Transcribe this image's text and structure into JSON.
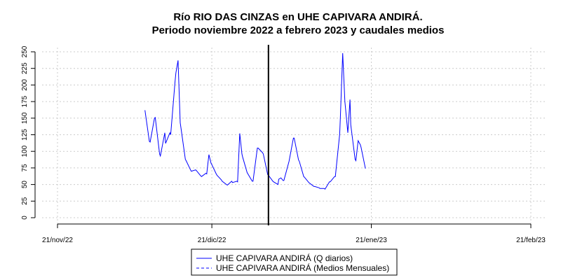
{
  "chart_data": {
    "type": "line",
    "title": "Río RIO DAS CINZAS en UHE CAPIVARA ANDIRÁ.",
    "subtitle": "Periodo noviembre 2022 a febrero 2023 y caudales medios",
    "xlabel": "",
    "ylabel": "",
    "x_ticks": [
      "21/nov/22",
      "21/dic/22",
      "21/ene/23",
      "21/feb/23"
    ],
    "x_tick_dates": [
      "2022-11-21",
      "2022-12-21",
      "2023-01-21",
      "2023-02-21"
    ],
    "xlim": [
      "2022-11-21",
      "2023-02-21"
    ],
    "y_ticks": [
      0,
      25,
      50,
      75,
      100,
      125,
      150,
      175,
      200,
      225,
      250
    ],
    "ylim": [
      0,
      250
    ],
    "grid": true,
    "legend_position": "bottom",
    "marker_date": "2023-01-01",
    "series": [
      {
        "name": "UHE CAPIVARA ANDIRÁ (Q diarios)",
        "color": "#0000ff",
        "style": "solid",
        "points": [
          [
            "2022-12-08",
            162
          ],
          [
            "2022-12-08",
            115
          ],
          [
            "2022-12-09",
            114
          ],
          [
            "2022-12-09",
            150
          ],
          [
            "2022-12-10",
            151
          ],
          [
            "2022-12-10",
            96
          ],
          [
            "2022-12-11",
            93
          ],
          [
            "2022-12-11",
            128
          ],
          [
            "2022-12-12",
            112
          ],
          [
            "2022-12-12",
            128
          ],
          [
            "2022-12-13",
            125
          ],
          [
            "2022-12-13",
            205
          ],
          [
            "2022-12-14",
            218
          ],
          [
            "2022-12-14",
            237
          ],
          [
            "2022-12-14",
            143
          ],
          [
            "2022-12-15",
            135
          ],
          [
            "2022-12-15",
            88
          ],
          [
            "2022-12-16",
            86
          ],
          [
            "2022-12-16",
            72
          ],
          [
            "2022-12-17",
            70
          ],
          [
            "2022-12-17",
            72
          ],
          [
            "2022-12-18",
            71
          ],
          [
            "2022-12-18",
            63
          ],
          [
            "2022-12-19",
            62
          ],
          [
            "2022-12-19",
            67
          ],
          [
            "2022-12-20",
            66
          ],
          [
            "2022-12-20",
            95
          ],
          [
            "2022-12-20",
            82
          ],
          [
            "2022-12-21",
            80
          ],
          [
            "2022-12-21",
            66
          ],
          [
            "2022-12-22",
            64
          ],
          [
            "2022-12-22",
            57
          ],
          [
            "2022-12-23",
            55
          ],
          [
            "2022-12-23",
            50
          ],
          [
            "2022-12-24",
            49
          ],
          [
            "2022-12-24",
            55
          ],
          [
            "2022-12-25",
            53
          ],
          [
            "2022-12-25",
            55
          ],
          [
            "2022-12-26",
            54
          ],
          [
            "2022-12-26",
            127
          ],
          [
            "2022-12-26",
            96
          ],
          [
            "2022-12-27",
            91
          ],
          [
            "2022-12-27",
            68
          ],
          [
            "2022-12-28",
            66
          ],
          [
            "2022-12-28",
            55
          ],
          [
            "2022-12-29",
            55
          ],
          [
            "2022-12-29",
            105
          ],
          [
            "2022-12-30",
            105
          ],
          [
            "2022-12-30",
            98
          ],
          [
            "2022-12-31",
            96
          ],
          [
            "2022-12-31",
            65
          ],
          [
            "2023-01-01",
            64
          ],
          [
            "2023-01-01",
            55
          ],
          [
            "2023-01-02",
            54
          ],
          [
            "2023-01-02",
            50
          ],
          [
            "2023-01-03",
            58
          ],
          [
            "2023-01-03",
            60
          ],
          [
            "2023-01-03",
            56
          ],
          [
            "2023-01-04",
            56
          ],
          [
            "2023-01-05",
            85
          ],
          [
            "2023-01-05",
            120
          ],
          [
            "2023-01-06",
            120
          ],
          [
            "2023-01-06",
            87
          ],
          [
            "2023-01-07",
            85
          ],
          [
            "2023-01-07",
            62
          ],
          [
            "2023-01-08",
            61
          ],
          [
            "2023-01-08",
            53
          ],
          [
            "2023-01-09",
            52
          ],
          [
            "2023-01-09",
            47
          ],
          [
            "2023-01-10",
            47
          ],
          [
            "2023-01-10",
            45
          ],
          [
            "2023-01-11",
            44
          ],
          [
            "2023-01-11",
            44
          ],
          [
            "2023-01-12",
            43
          ],
          [
            "2023-01-12",
            54
          ],
          [
            "2023-01-13",
            54
          ],
          [
            "2023-01-13",
            62
          ],
          [
            "2023-01-14",
            62
          ],
          [
            "2023-01-14",
            126
          ],
          [
            "2023-01-15",
            155
          ],
          [
            "2023-01-15",
            248
          ],
          [
            "2023-01-15",
            175
          ],
          [
            "2023-01-16",
            163
          ],
          [
            "2023-01-16",
            128
          ],
          [
            "2023-01-16",
            178
          ],
          [
            "2023-01-17",
            140
          ],
          [
            "2023-01-17",
            88
          ],
          [
            "2023-01-18",
            86
          ],
          [
            "2023-01-18",
            116
          ],
          [
            "2023-01-18",
            110
          ],
          [
            "2023-01-19",
            106
          ],
          [
            "2023-01-19",
            74
          ]
        ]
      },
      {
        "name": "UHE CAPIVARA ANDIRÁ (Medios Mensuales)",
        "color": "#0000ff",
        "style": "dashed",
        "points": []
      }
    ]
  }
}
